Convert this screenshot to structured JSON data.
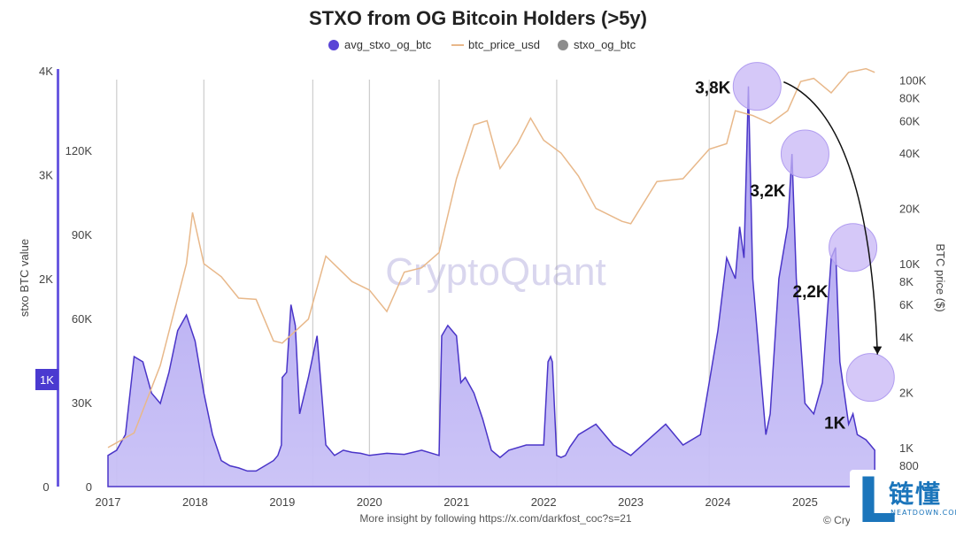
{
  "chart_data": {
    "type": "area",
    "title": "STXO from OG Bitcoin Holders (>5y)",
    "legend": [
      {
        "name": "avg_stxo_og_btc",
        "color": "#5a45d6",
        "marker": "circle"
      },
      {
        "name": "btc_price_usd",
        "color": "#e8b88a",
        "marker": "line"
      },
      {
        "name": "stxo_og_btc",
        "color": "#8c8c8c",
        "marker": "circle"
      }
    ],
    "watermark": "CryptoQuant",
    "ylabel_left": "stxo BTC value",
    "ylabel_right": "BTC price ($)",
    "left_axis_ticks": [
      "0",
      "1K",
      "2K",
      "3K",
      "4K"
    ],
    "left_axis_highlight": "1K",
    "inner_axis_ticks": [
      "0",
      "30K",
      "60K",
      "90K",
      "120K"
    ],
    "right_axis_ticks": [
      "800",
      "1K",
      "2K",
      "4K",
      "6K",
      "8K",
      "10K",
      "20K",
      "40K",
      "60K",
      "80K",
      "100K"
    ],
    "right_axis_values": [
      800,
      1000,
      2000,
      4000,
      6000,
      8000,
      10000,
      20000,
      40000,
      60000,
      80000,
      100000
    ],
    "x_labels": [
      "2017",
      "2018",
      "2019",
      "2020",
      "2021",
      "2022",
      "2023",
      "2024",
      "2025"
    ],
    "ylim_left": [
      0,
      4000
    ],
    "avg_stxo_og_btc": {
      "x": [
        2017.0,
        2017.1,
        2017.2,
        2017.3,
        2017.4,
        2017.5,
        2017.6,
        2017.7,
        2017.8,
        2017.9,
        2018.0,
        2018.1,
        2018.2,
        2018.3,
        2018.4,
        2018.5,
        2018.6,
        2018.7,
        2018.8,
        2018.9,
        2018.95,
        2018.99,
        2019.0,
        2019.05,
        2019.1,
        2019.15,
        2019.2,
        2019.3,
        2019.4,
        2019.5,
        2019.6,
        2019.7,
        2019.8,
        2019.9,
        2020.0,
        2020.2,
        2020.4,
        2020.6,
        2020.8,
        2020.83,
        2020.9,
        2021.0,
        2021.05,
        2021.1,
        2021.2,
        2021.3,
        2021.4,
        2021.5,
        2021.6,
        2021.8,
        2022.0,
        2022.05,
        2022.08,
        2022.1,
        2022.15,
        2022.2,
        2022.25,
        2022.3,
        2022.4,
        2022.6,
        2022.8,
        2023.0,
        2023.2,
        2023.4,
        2023.6,
        2023.8,
        2023.9,
        2024.0,
        2024.1,
        2024.2,
        2024.25,
        2024.3,
        2024.35,
        2024.4,
        2024.45,
        2024.5,
        2024.55,
        2024.6,
        2024.7,
        2024.8,
        2024.85,
        2024.9,
        2025.0,
        2025.1,
        2025.2,
        2025.3,
        2025.35,
        2025.4,
        2025.5,
        2025.55,
        2025.6,
        2025.7,
        2025.75,
        2025.8
      ],
      "y": [
        300,
        350,
        500,
        1250,
        1200,
        900,
        800,
        1100,
        1500,
        1650,
        1400,
        900,
        500,
        250,
        200,
        180,
        150,
        150,
        200,
        250,
        300,
        400,
        1050,
        1100,
        1750,
        1550,
        700,
        1050,
        1450,
        400,
        300,
        350,
        330,
        320,
        300,
        320,
        310,
        350,
        300,
        1450,
        1550,
        1450,
        1000,
        1050,
        900,
        650,
        350,
        280,
        350,
        400,
        400,
        1200,
        1250,
        1200,
        300,
        280,
        300,
        380,
        500,
        600,
        400,
        300,
        450,
        600,
        400,
        500,
        1000,
        1500,
        2200,
        2000,
        2500,
        2200,
        3850,
        2000,
        1500,
        1000,
        500,
        700,
        2000,
        2500,
        3200,
        2000,
        800,
        700,
        1000,
        2200,
        2300,
        1200,
        600,
        700,
        500,
        450,
        400,
        350
      ]
    },
    "btc_price_usd": {
      "x": [
        2017.0,
        2017.3,
        2017.6,
        2017.9,
        2017.97,
        2018.1,
        2018.3,
        2018.5,
        2018.7,
        2018.9,
        2019.0,
        2019.3,
        2019.5,
        2019.8,
        2020.0,
        2020.2,
        2020.4,
        2020.6,
        2020.8,
        2021.0,
        2021.2,
        2021.35,
        2021.5,
        2021.7,
        2021.85,
        2022.0,
        2022.2,
        2022.4,
        2022.6,
        2022.9,
        2023.0,
        2023.3,
        2023.6,
        2023.9,
        2024.1,
        2024.2,
        2024.4,
        2024.6,
        2024.8,
        2024.95,
        2025.1,
        2025.3,
        2025.5,
        2025.7,
        2025.8
      ],
      "y": [
        1000,
        1200,
        2800,
        10000,
        19000,
        10000,
        8500,
        6500,
        6400,
        3800,
        3700,
        5000,
        11000,
        8000,
        7200,
        5500,
        9000,
        9500,
        11500,
        29000,
        57000,
        60000,
        33000,
        45000,
        62000,
        47000,
        40000,
        30000,
        20000,
        17000,
        16500,
        28000,
        29000,
        42000,
        45000,
        68000,
        64000,
        58000,
        68000,
        98000,
        102000,
        85000,
        110000,
        115000,
        110000
      ]
    },
    "annotations": [
      {
        "label": "3,8K",
        "x": 2024.45,
        "y": 3850
      },
      {
        "label": "3,2K",
        "x": 2025.0,
        "y": 3200
      },
      {
        "label": "2,2K",
        "x": 2025.55,
        "y": 2300
      },
      {
        "label": "1K",
        "x": 2025.75,
        "y": 1050
      }
    ]
  },
  "footer": {
    "text": "More insight by following https://x.com/darkfost_coc?s=21",
    "credit": "© Cryptoquant"
  },
  "logo": {
    "mark": "L",
    "cn": "链懂",
    "sub": "NEATDOWN.COM"
  }
}
